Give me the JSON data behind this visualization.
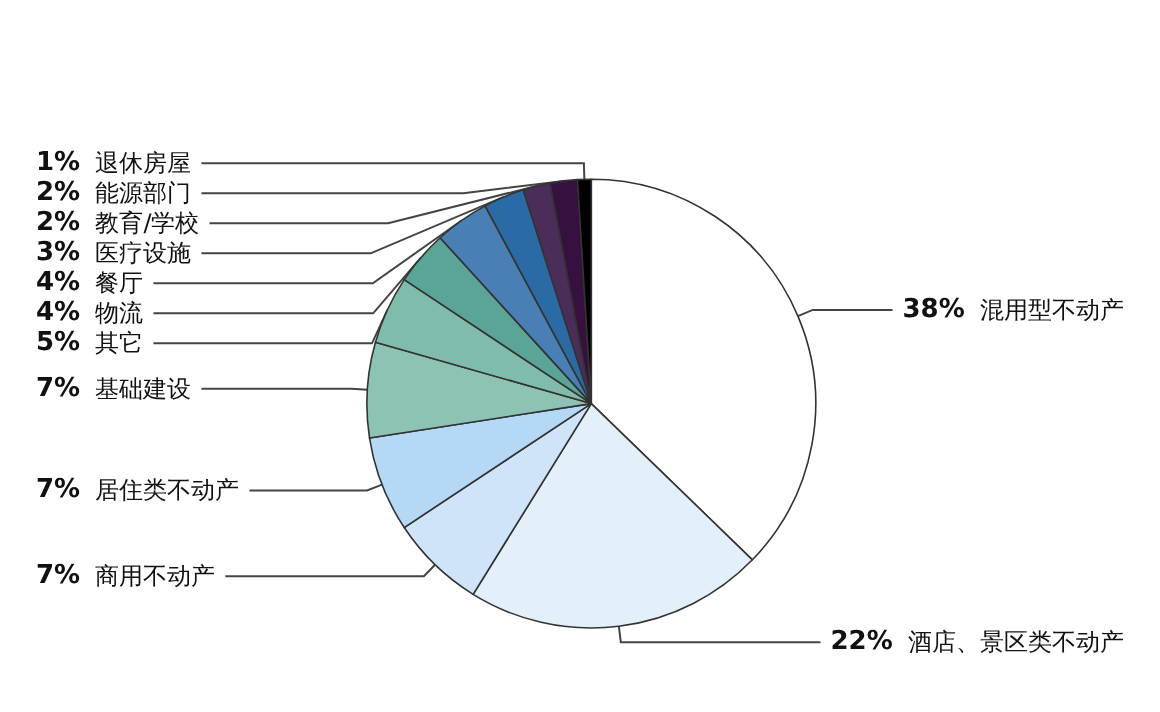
{
  "chart_data": {
    "type": "pie",
    "categories": [
      "混用型不动产",
      "酒店、景区类不动产",
      "商用不动产",
      "居住类不动产",
      "基础建设",
      "其它",
      "物流",
      "餐厅",
      "医疗设施",
      "教育/学校",
      "能源部门",
      "退休房屋"
    ],
    "values": [
      38,
      22,
      7,
      7,
      7,
      5,
      4,
      4,
      3,
      2,
      2,
      1
    ],
    "colors": [
      "#ffffff",
      "#e3effb",
      "#cfe4f9",
      "#b5d8f5",
      "#8cc3b5",
      "#7fbcae",
      "#5aa596",
      "#4a7fb5",
      "#2a6aa5",
      "#4b2d5a",
      "#36103f",
      "#000000"
    ],
    "value_labels": [
      "38%",
      "22%",
      "7%",
      "7%",
      "7%",
      "5%",
      "4%",
      "4%",
      "3%",
      "2%",
      "2%",
      "1%"
    ]
  }
}
